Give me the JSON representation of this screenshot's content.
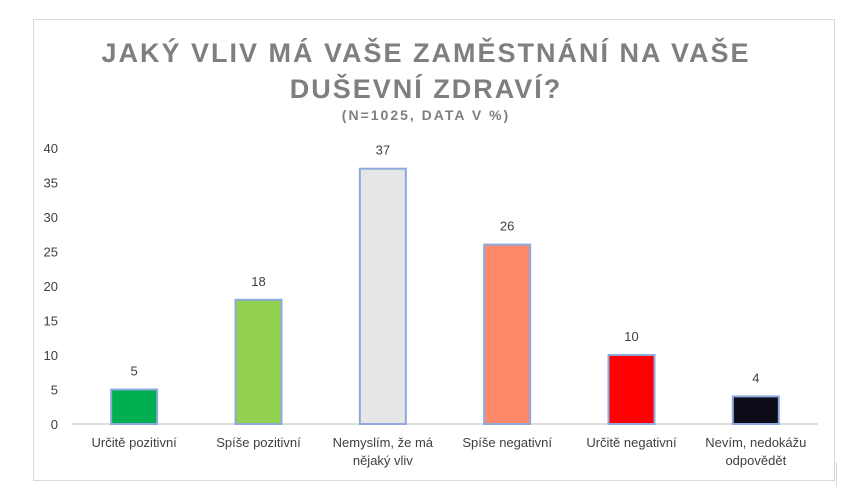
{
  "chart_data": {
    "type": "bar",
    "title": "JAKÝ VLIV MÁ VAŠE ZAMĚSTNÁNÍ NA VAŠE DUŠEVNÍ ZDRAVÍ?",
    "title_lines": [
      "JAKÝ VLIV MÁ VAŠE ZAMĚSTNÁNÍ NA VAŠE",
      "DUŠEVNÍ ZDRAVÍ?"
    ],
    "subtitle": "(N=1025, DATA V %)",
    "categories": [
      [
        "Určitě pozitivní"
      ],
      [
        "Spíše pozitivní"
      ],
      [
        "Nemyslím, že má",
        "nějaký vliv"
      ],
      [
        "Spíše negativní"
      ],
      [
        "Určitě negativní"
      ],
      [
        "Nevím, nedokážu",
        "odpovědět"
      ]
    ],
    "values": [
      5,
      18,
      37,
      26,
      10,
      4
    ],
    "data_labels": [
      "5",
      "18",
      "37",
      "26",
      "10",
      "4"
    ],
    "colors": [
      "#00b050",
      "#92d050",
      "#e7e6e6",
      "#ff8a6b",
      "#ff0000",
      "#0d0d1a"
    ],
    "bar_border": "#8ea9db",
    "yticks": [
      "0",
      "5",
      "10",
      "15",
      "20",
      "25",
      "30",
      "35",
      "40"
    ],
    "ylim": [
      0,
      40
    ],
    "grid": false,
    "legend": "none",
    "xlabel": "",
    "ylabel": ""
  }
}
